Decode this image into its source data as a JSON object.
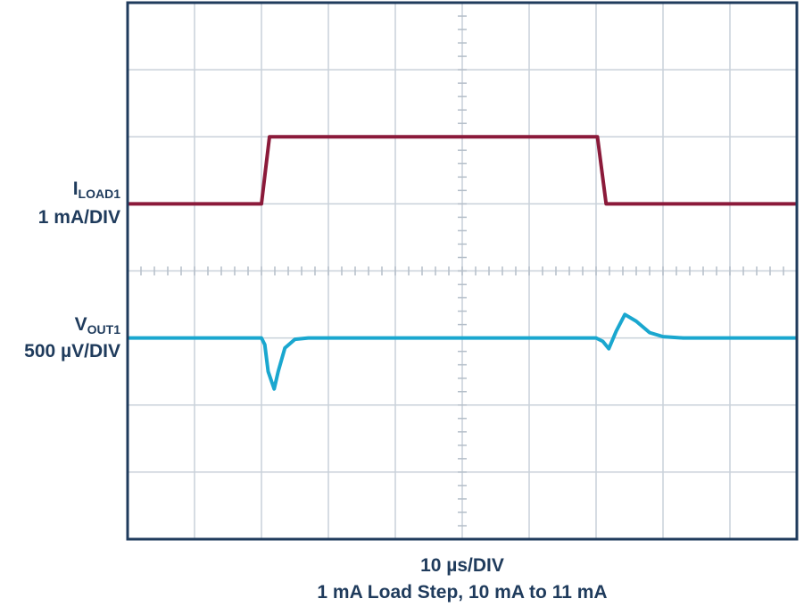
{
  "chart_data": {
    "type": "line",
    "x_label": "10 µs/DIV",
    "caption": "1 mA Load Step, 10 mA to 11 mA",
    "xlim": [
      0,
      100
    ],
    "ylim": [
      0,
      8
    ],
    "xticks": [
      0,
      10,
      20,
      30,
      40,
      50,
      60,
      70,
      80,
      90,
      100
    ],
    "yticks": [
      0,
      1,
      2,
      3,
      4,
      5,
      6,
      7,
      8
    ],
    "grid": true,
    "series": [
      {
        "name": "I",
        "subscript": "LOAD1",
        "scale": "1 mA/DIV",
        "color": "#8b1a3a",
        "x": [
          0,
          20,
          21.2,
          70.2,
          71.5,
          100
        ],
        "values": [
          5,
          5,
          6,
          6,
          5,
          5
        ]
      },
      {
        "name": "V",
        "subscript": "OUT1",
        "scale": "500 µV/DIV",
        "color": "#1aa7cf",
        "x": [
          0,
          20,
          20.5,
          21,
          21.9,
          22.5,
          23.5,
          25,
          27,
          70,
          71,
          71.9,
          73,
          74.3,
          76,
          78,
          80,
          83,
          100
        ],
        "values": [
          3,
          3,
          2.9,
          2.5,
          2.24,
          2.5,
          2.85,
          2.98,
          3,
          3,
          2.95,
          2.84,
          3.1,
          3.35,
          3.25,
          3.08,
          3.02,
          3,
          3
        ]
      }
    ]
  }
}
